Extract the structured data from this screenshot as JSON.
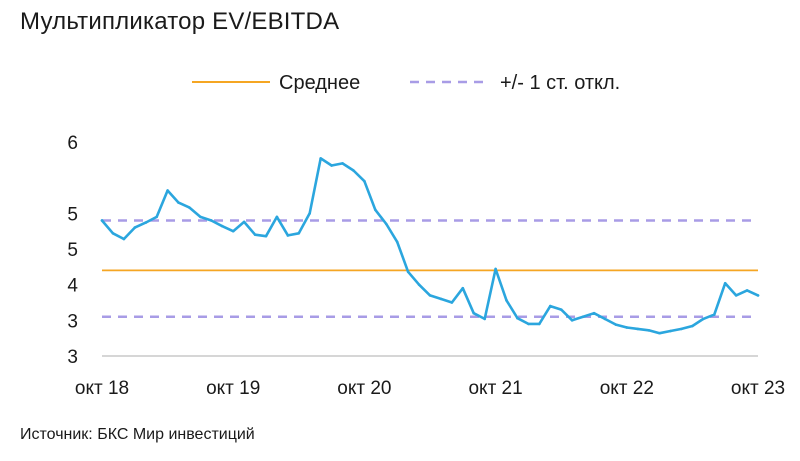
{
  "title": "Мультипликатор EV/EBITDA",
  "source": "Источник: БКС Мир инвестиций",
  "colors": {
    "series": "#2BA6DE",
    "mean": "#F5A623",
    "std": "#A89CE6",
    "axis": "#C8C8C8"
  },
  "chart_data": {
    "type": "line",
    "legend": {
      "position": "top-center",
      "entries": [
        {
          "label": "Среднее",
          "style": "solid",
          "color": "#F5A623"
        },
        {
          "label": "+/- 1 ст. откл.",
          "style": "dashed",
          "color": "#A89CE6"
        }
      ]
    },
    "y_tick_labels": [
      "6",
      "5",
      "5",
      "4",
      "3",
      "3"
    ],
    "y_tick_values": [
      6.5,
      5.5,
      5.0,
      4.5,
      4.0,
      3.5
    ],
    "ylim": [
      3.5,
      6.5
    ],
    "x_tick_labels": [
      "окт 18",
      "окт 19",
      "окт 20",
      "окт 21",
      "окт 22",
      "окт 23"
    ],
    "xlim": [
      "2018-10",
      "2023-10"
    ],
    "grid": false,
    "mean": 4.7,
    "std_lower": 4.05,
    "std_upper": 5.4,
    "series": [
      {
        "x": [
          "2018-10",
          "2018-11",
          "2018-12",
          "2019-01",
          "2019-02",
          "2019-03",
          "2019-04",
          "2019-05",
          "2019-06",
          "2019-07",
          "2019-08",
          "2019-09",
          "2019-10",
          "2019-11",
          "2019-12",
          "2020-01",
          "2020-02",
          "2020-03",
          "2020-04",
          "2020-05",
          "2020-06",
          "2020-07",
          "2020-08",
          "2020-09",
          "2020-10",
          "2020-11",
          "2020-12",
          "2021-01",
          "2021-02",
          "2021-03",
          "2021-04",
          "2021-05",
          "2021-06",
          "2021-07",
          "2021-08",
          "2021-09",
          "2021-10",
          "2021-11",
          "2021-12",
          "2022-01",
          "2022-02",
          "2022-03",
          "2022-04",
          "2022-05",
          "2022-06",
          "2022-07",
          "2022-08",
          "2022-09",
          "2022-10",
          "2022-11",
          "2022-12",
          "2023-01",
          "2023-02",
          "2023-03",
          "2023-04",
          "2023-05",
          "2023-06",
          "2023-07",
          "2023-08",
          "2023-09",
          "2023-10"
        ],
        "values": [
          5.4,
          5.22,
          5.14,
          5.3,
          5.37,
          5.45,
          5.82,
          5.65,
          5.58,
          5.45,
          5.4,
          5.32,
          5.25,
          5.38,
          5.2,
          5.18,
          5.45,
          5.19,
          5.22,
          5.5,
          6.27,
          6.17,
          6.2,
          6.1,
          5.95,
          5.55,
          5.35,
          5.1,
          4.68,
          4.5,
          4.35,
          4.3,
          4.25,
          4.45,
          4.1,
          4.02,
          4.72,
          4.28,
          4.03,
          3.95,
          3.95,
          4.2,
          4.15,
          4.0,
          4.05,
          4.1,
          4.02,
          3.94,
          3.9,
          3.88,
          3.86,
          3.82,
          3.85,
          3.88,
          3.92,
          4.02,
          4.08,
          4.52,
          4.35,
          4.42,
          4.35
        ]
      }
    ]
  }
}
